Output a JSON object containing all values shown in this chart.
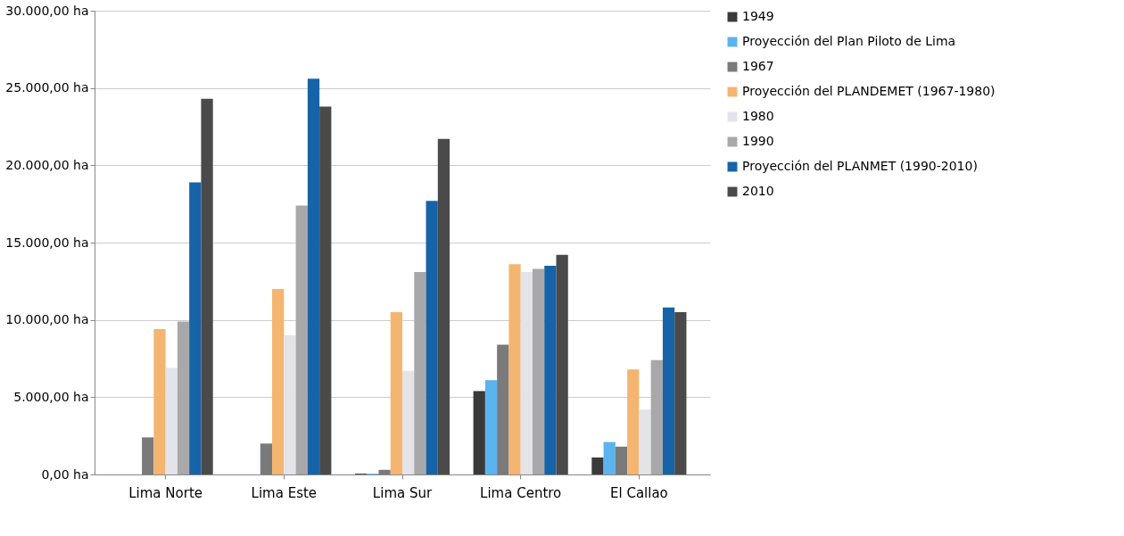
{
  "chart_data": {
    "type": "bar",
    "categories": [
      "Lima Norte",
      "Lima Este",
      "Lima Sur",
      "Lima Centro",
      "El Callao"
    ],
    "series": [
      {
        "name": "1949",
        "color": "#3a3a3a",
        "values": [
          0,
          0,
          50,
          5400,
          1100
        ]
      },
      {
        "name": "Proyección del Plan Piloto de Lima",
        "color": "#5bb4ee",
        "values": [
          0,
          0,
          50,
          6100,
          2100
        ]
      },
      {
        "name": "1967",
        "color": "#7a7a7a",
        "values": [
          2400,
          2000,
          300,
          8400,
          1800
        ]
      },
      {
        "name": "Proyección del PLANDEMET (1967-1980)",
        "color": "#f4b570",
        "values": [
          9400,
          12000,
          10500,
          13600,
          6800
        ]
      },
      {
        "name": "1980",
        "color": "#e4e4e8",
        "values": [
          6900,
          9000,
          6700,
          13100,
          4200
        ]
      },
      {
        "name": "1990",
        "color": "#a8a8aa",
        "values": [
          9900,
          17400,
          13100,
          13300,
          7400
        ]
      },
      {
        "name": "Proyección del PLANMET (1990-2010)",
        "color": "#1763a8",
        "values": [
          18900,
          25600,
          17700,
          13500,
          10800
        ]
      },
      {
        "name": "2010",
        "color": "#4a4a4a",
        "values": [
          24300,
          23800,
          21700,
          14200,
          10500
        ]
      }
    ],
    "ylim": [
      0,
      30000
    ],
    "yticks": [
      {
        "value": 0,
        "label": "0,00 ha"
      },
      {
        "value": 5000,
        "label": "5.000,00 ha"
      },
      {
        "value": 10000,
        "label": "10.000,00 ha"
      },
      {
        "value": 15000,
        "label": "15.000,00 ha"
      },
      {
        "value": 20000,
        "label": "20.000,00 ha"
      },
      {
        "value": 25000,
        "label": "25.000,00 ha"
      },
      {
        "value": 30000,
        "label": "30.000,00 ha"
      }
    ],
    "grid": "y",
    "legend": "right"
  }
}
